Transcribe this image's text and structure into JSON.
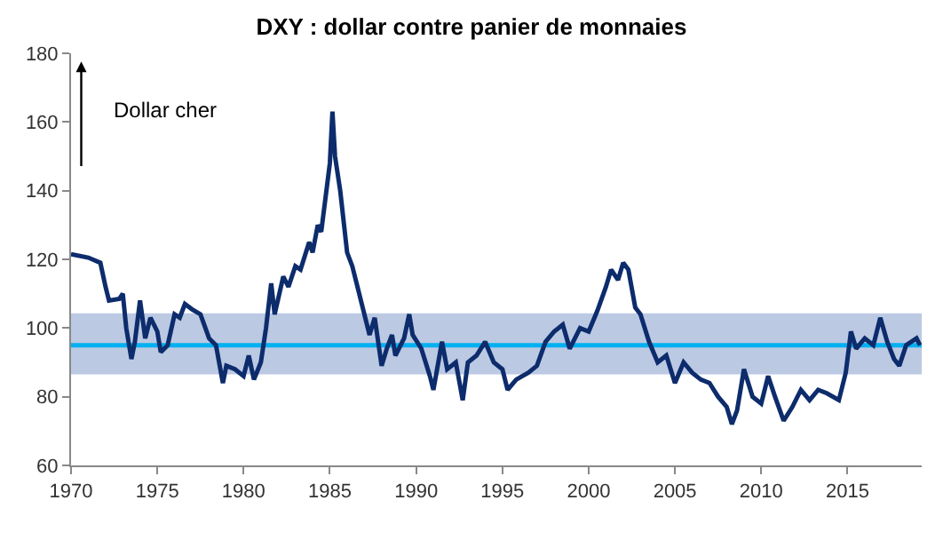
{
  "chart_data": {
    "type": "line",
    "title": "DXY : dollar contre panier de monnaies",
    "annotations": [
      "Dollar cher"
    ],
    "x": [
      1970,
      1971,
      1971.7,
      1972,
      1972.2,
      1972.8,
      1973,
      1973.2,
      1973.5,
      1973.7,
      1974,
      1974.3,
      1974.6,
      1975,
      1975.2,
      1975.6,
      1976,
      1976.3,
      1976.6,
      1977,
      1977.5,
      1978,
      1978.4,
      1978.8,
      1979,
      1979.5,
      1980,
      1980.3,
      1980.6,
      1981,
      1981.3,
      1981.6,
      1981.8,
      1982.3,
      1982.6,
      1983,
      1983.3,
      1983.8,
      1984,
      1984.3,
      1984.5,
      1984.8,
      1985,
      1985.15,
      1985.3,
      1985.6,
      1986,
      1986.3,
      1986.6,
      1987,
      1987.3,
      1987.6,
      1988,
      1988.3,
      1988.6,
      1988.8,
      1989.3,
      1989.6,
      1989.8,
      1990.3,
      1990.8,
      1991,
      1991.5,
      1991.8,
      1992.3,
      1992.7,
      1993,
      1993.5,
      1994,
      1994.5,
      1995,
      1995.3,
      1995.8,
      1996.5,
      1997,
      1997.5,
      1998,
      1998.5,
      1998.9,
      1999.5,
      2000,
      2000.5,
      2001,
      2001.3,
      2001.7,
      2002,
      2002.3,
      2002.7,
      2003,
      2003.5,
      2004,
      2004.5,
      2005,
      2005.5,
      2006,
      2006.5,
      2007,
      2007.5,
      2008,
      2008.3,
      2008.6,
      2009,
      2009.5,
      2010,
      2010.4,
      2010.8,
      2011.3,
      2011.8,
      2012.3,
      2012.8,
      2013.3,
      2013.8,
      2014.5,
      2014.9,
      2015.2,
      2015.5,
      2016,
      2016.5,
      2016.9,
      2017.3,
      2017.7,
      2018,
      2018.4,
      2019,
      2019.2
    ],
    "series": [
      {
        "color": "#0d2c6c",
        "values": [
          121.5,
          120.5,
          119,
          112,
          108,
          108.5,
          110,
          100,
          91,
          96,
          108,
          97,
          103,
          99,
          93,
          95,
          104,
          103,
          107,
          105.5,
          104,
          97,
          95,
          84,
          89,
          88,
          86,
          92,
          85,
          90,
          100,
          113,
          104,
          115,
          112,
          118,
          117,
          125,
          122,
          130,
          128,
          140,
          148,
          163,
          150,
          140,
          122,
          118,
          112,
          104,
          98,
          103,
          89,
          94,
          98,
          92,
          97,
          104,
          98,
          94,
          86,
          82,
          96,
          88,
          90,
          79,
          90,
          92,
          96,
          90,
          88,
          82,
          85,
          87,
          89,
          96,
          99,
          101,
          94,
          100,
          99,
          105,
          112,
          117,
          114,
          119,
          117,
          106,
          104,
          96,
          90,
          92,
          84,
          90,
          87,
          85,
          84,
          80,
          77,
          72,
          76,
          88,
          80,
          78,
          86,
          80,
          73,
          77,
          82,
          79,
          82,
          81,
          79,
          87,
          99,
          94,
          97,
          95,
          103,
          96,
          91,
          89,
          95,
          97,
          95
        ]
      }
    ],
    "xlim": [
      1970,
      2019.3
    ],
    "xticks": [
      1970,
      1975,
      1980,
      1985,
      1990,
      1995,
      2000,
      2005,
      2010,
      2015
    ],
    "ylim": [
      60,
      180
    ],
    "yticks": [
      60,
      80,
      100,
      120,
      140,
      160,
      180
    ],
    "ref_lines": [
      {
        "axis": "y",
        "value": 95,
        "color": "#00b0f0"
      }
    ],
    "bands": [
      {
        "axis": "y",
        "from": 86.5,
        "to": 104.3,
        "color": "#b4c3e0"
      }
    ],
    "grid": false
  }
}
